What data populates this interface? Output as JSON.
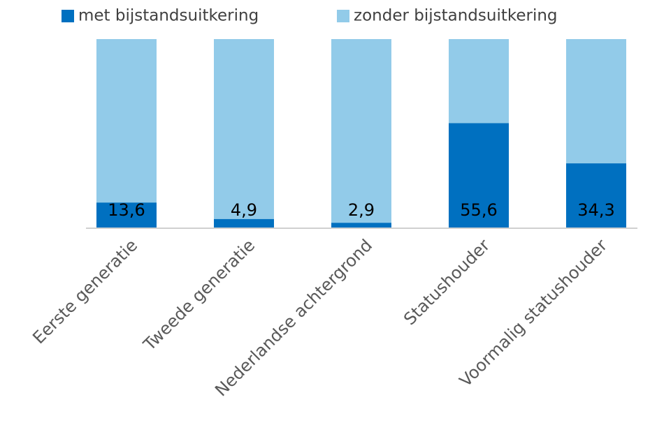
{
  "chart_data": {
    "type": "stacked_bar",
    "categories": [
      "Eerste generatie",
      "Tweede generatie",
      "Nederlandse achtergrond",
      "Statushouder",
      "Voormalig statushouder"
    ],
    "series": [
      {
        "name": "met bijstandsuitkering",
        "color": "#0070c0",
        "values": [
          13.6,
          4.9,
          2.9,
          55.6,
          34.3
        ],
        "value_labels": [
          "13,6",
          "4,9",
          "2,9",
          "55,6",
          "34,3"
        ]
      },
      {
        "name": "zonder bijstandsuitkering",
        "color": "#92cbe9",
        "values": [
          86.4,
          95.1,
          97.1,
          44.4,
          65.7
        ]
      }
    ],
    "legend": "top"
  }
}
